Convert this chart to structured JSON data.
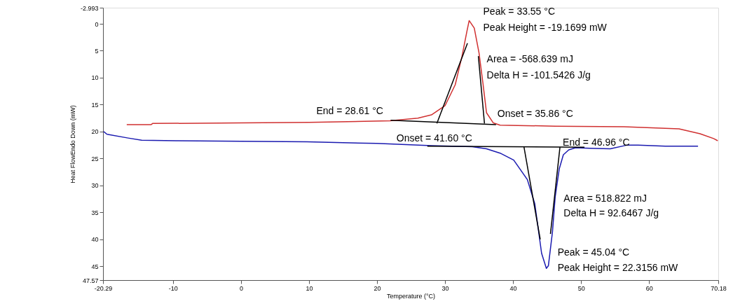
{
  "chart_data": {
    "type": "line",
    "xlabel": "Temperature (°C)",
    "ylabel": "Heat FlowEndo Down (mW)",
    "xlim": [
      -20.29,
      70.18
    ],
    "xticks": [
      -20.29,
      -10,
      0,
      10,
      20,
      30,
      40,
      50,
      60,
      70.18
    ],
    "ylim": [
      47.57,
      -2.993
    ],
    "yticks": [
      -2.993,
      0,
      5,
      10,
      15,
      20,
      25,
      30,
      35,
      40,
      45,
      47.57
    ],
    "grid": false,
    "marker": "none",
    "line_style": "solid",
    "series": [
      {
        "color": "#d03030",
        "x": [
          -16.8,
          -13.2,
          -13,
          0,
          10,
          21.9,
          26,
          28,
          30,
          31.5,
          32.5,
          33.2,
          33.55,
          34.3,
          35,
          35.6,
          36.1,
          37.1,
          38.1,
          46.2,
          56.3,
          64.4,
          67.5,
          69.5,
          70.1
        ],
        "values": [
          18.7,
          18.7,
          18.5,
          18.4,
          18.3,
          18.0,
          17.5,
          16.9,
          15.2,
          11.3,
          6.0,
          1.5,
          -0.6,
          0.8,
          5.4,
          11.3,
          16.5,
          18.4,
          18.8,
          19.0,
          19.1,
          19.5,
          20.4,
          21.3,
          21.7
        ]
      },
      {
        "color": "#1a1ab0",
        "x": [
          -20.2,
          -19.7,
          -16.6,
          -14.6,
          -9.5,
          0,
          9.7,
          19.9,
          28,
          34,
          36.1,
          38.1,
          40.1,
          42.1,
          43.2,
          44.2,
          44.9,
          45.2,
          45.8,
          46.2,
          46.8,
          47.4,
          48.2,
          49.2,
          51.3,
          54.3,
          56.8,
          58.4,
          62.4,
          67.2
        ],
        "values": [
          20.0,
          20.5,
          21.2,
          21.6,
          21.7,
          21.8,
          21.9,
          22.2,
          22.6,
          22.8,
          23.2,
          24.0,
          25.3,
          28.9,
          33.4,
          42.6,
          45.4,
          44.9,
          38.6,
          32.1,
          26.9,
          24.3,
          23.4,
          23.0,
          23.1,
          23.2,
          22.5,
          22.5,
          22.7,
          22.7
        ]
      },
      {
        "color": "#000000",
        "x": [
          22.0,
          37.5
        ],
        "values": [
          17.9,
          18.7
        ]
      },
      {
        "color": "#000000",
        "x": [
          28.8,
          33.3
        ],
        "values": [
          18.5,
          3.6
        ]
      },
      {
        "color": "#000000",
        "x": [
          35.8,
          34.9
        ],
        "values": [
          18.5,
          6.0
        ]
      },
      {
        "color": "#000000",
        "x": [
          27.4,
          50.5
        ],
        "values": [
          22.7,
          22.9
        ]
      },
      {
        "color": "#000000",
        "x": [
          41.6,
          44.0
        ],
        "values": [
          22.8,
          40.0
        ]
      },
      {
        "color": "#000000",
        "x": [
          46.9,
          45.5
        ],
        "values": [
          22.9,
          39.0
        ]
      }
    ],
    "annotations": [
      {
        "text": "Peak = 33.55 °C",
        "x": 33.55,
        "y": -0.6
      },
      {
        "text": "Peak Height = -19.1699 mW",
        "x": 33.55,
        "y": -0.6
      },
      {
        "text": "Area = -568.639 mJ",
        "x": 34.9,
        "y": 6.0
      },
      {
        "text": "Delta H = -101.5426 J/g",
        "x": 34.9,
        "y": 6.0
      },
      {
        "text": "End = 28.61 °C",
        "x": 22.0,
        "y": 17.9
      },
      {
        "text": "Onset = 35.86 °C",
        "x": 37.5,
        "y": 18.7
      },
      {
        "text": "Onset = 41.60 °C",
        "x": 27.4,
        "y": 22.7
      },
      {
        "text": "End = 46.96 °C",
        "x": 46.9,
        "y": 22.9
      },
      {
        "text": "Area = 518.822 mJ",
        "x": 46.1,
        "y": 32.1
      },
      {
        "text": "Delta H = 92.6467 J/g",
        "x": 46.1,
        "y": 32.1
      },
      {
        "text": "Peak = 45.04 °C",
        "x": 44.9,
        "y": 45.4
      },
      {
        "text": "Peak Height = 22.3156 mW",
        "x": 44.9,
        "y": 45.4
      }
    ]
  }
}
